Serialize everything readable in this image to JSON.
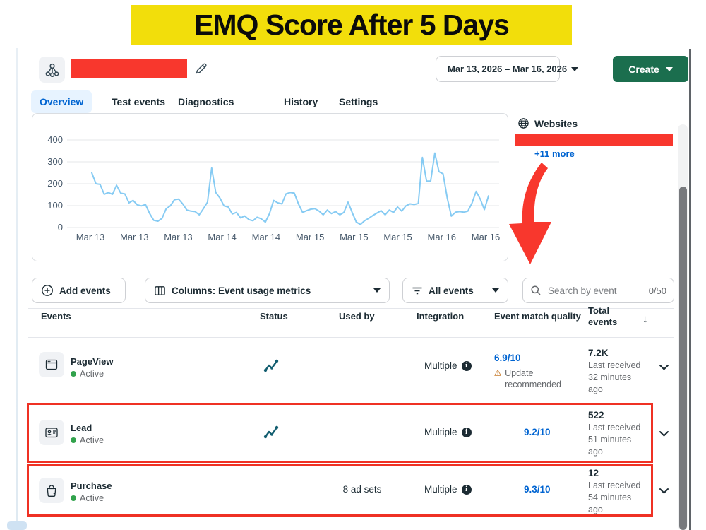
{
  "banner": {
    "title": "EMQ Score After 5 Days"
  },
  "header": {
    "date_range": "Mar 13, 2026 – Mar 16, 2026",
    "create_label": "Create"
  },
  "tabs": [
    {
      "label": "Overview",
      "active": true
    },
    {
      "label": "Test events",
      "active": false
    },
    {
      "label": "Diagnostics",
      "active": false
    },
    {
      "label": "History",
      "active": false
    },
    {
      "label": "Settings",
      "active": false
    }
  ],
  "chart_data": {
    "type": "line",
    "title": "",
    "xlabel": "",
    "ylabel": "",
    "ylim": [
      0,
      400
    ],
    "y_ticks": [
      0,
      100,
      200,
      300,
      400
    ],
    "x_labels": [
      "Mar 13",
      "Mar 13",
      "Mar 13",
      "Mar 14",
      "Mar 14",
      "Mar 15",
      "Mar 15",
      "Mar 15",
      "Mar 16",
      "Mar 16"
    ],
    "grid": true,
    "legend": "none",
    "line_color": "#86cbf3",
    "values": [
      250,
      200,
      197,
      152,
      160,
      152,
      193,
      157,
      154,
      113,
      124,
      104,
      99,
      105,
      64,
      33,
      29,
      42,
      86,
      99,
      127,
      130,
      108,
      80,
      75,
      73,
      58,
      86,
      116,
      272,
      160,
      135,
      99,
      94,
      62,
      69,
      44,
      53,
      36,
      31,
      47,
      40,
      25,
      64,
      124,
      113,
      108,
      154,
      160,
      157,
      108,
      69,
      77,
      84,
      86,
      75,
      58,
      80,
      64,
      73,
      58,
      69,
      116,
      69,
      25,
      14,
      31,
      42,
      55,
      66,
      77,
      58,
      80,
      69,
      94,
      75,
      99,
      108,
      105,
      110,
      320,
      212,
      212,
      340,
      255,
      245,
      135,
      52,
      70,
      73,
      70,
      75,
      112,
      165,
      130,
      82,
      145
    ]
  },
  "websites_panel": {
    "title": "Websites",
    "more_link": "+11 more"
  },
  "toolbar": {
    "add_events_label": "Add events",
    "columns_label": "Columns: Event usage metrics",
    "filter_label": "All events",
    "search_placeholder": "Search by event",
    "search_value": "",
    "search_counter": "0/50"
  },
  "table": {
    "columns": [
      "Events",
      "Status",
      "Used by",
      "Integration",
      "Event match quality",
      "Total events"
    ],
    "sort_icon": "↓",
    "rows": [
      {
        "name": "PageView",
        "status_text": "Active",
        "icon": "browser-window-icon",
        "has_activity": true,
        "used_by": "",
        "integration": "Multiple",
        "emq": "6.9/10",
        "emq_warning": "Update recommended",
        "total": "7.2K",
        "last_received": "Last received 32 minutes ago",
        "highlighted": false
      },
      {
        "name": "Lead",
        "status_text": "Active",
        "icon": "id-card-icon",
        "has_activity": true,
        "used_by": "",
        "integration": "Multiple",
        "emq": "9.2/10",
        "emq_warning": "",
        "total": "522",
        "last_received": "Last received 51 minutes ago",
        "highlighted": true
      },
      {
        "name": "Purchase",
        "status_text": "Active",
        "icon": "shopping-bag-icon",
        "has_activity": false,
        "used_by": "8 ad sets",
        "integration": "Multiple",
        "emq": "9.3/10",
        "emq_warning": "",
        "total": "12",
        "last_received": "Last received 54 minutes ago",
        "highlighted": true
      }
    ]
  },
  "colors": {
    "banner_yellow": "#f2de0b",
    "highlight_red": "#f8372d",
    "row_box_red": "#ef3124",
    "create_green": "#1b6e4e",
    "link_blue": "#0064d1",
    "active_tab_bg": "#e7f3ff",
    "chart_line_blue": "#86cbf3",
    "activity_teal": "#135e70",
    "active_dot_green": "#31a24c",
    "warning_orange": "#c77b2b",
    "text_dark": "#1c2b33",
    "text_gray": "#65686c"
  },
  "icons": {
    "caret": "▾",
    "sort_desc": "↓",
    "search": "magnifier",
    "info": "i"
  }
}
